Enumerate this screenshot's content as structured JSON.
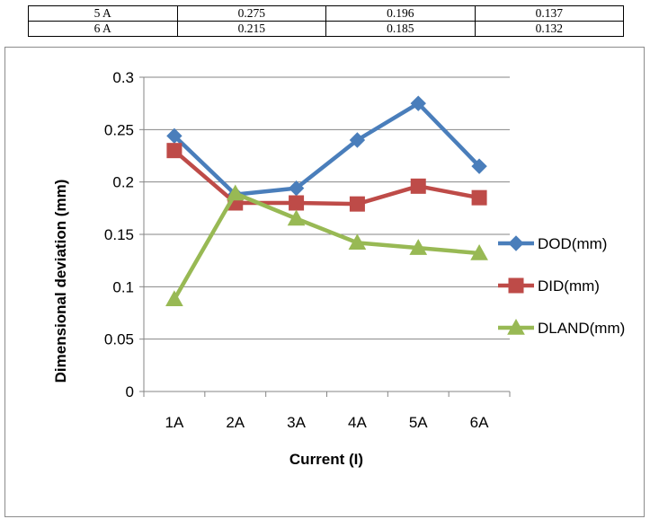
{
  "table": {
    "rows": [
      [
        "5 A",
        "0.275",
        "0.196",
        "0.137"
      ],
      [
        "6 A",
        "0.215",
        "0.185",
        "0.132"
      ]
    ]
  },
  "chart_data": {
    "type": "line",
    "categories": [
      "1A",
      "2A",
      "3A",
      "4A",
      "5A",
      "6A"
    ],
    "series": [
      {
        "name": "DOD(mm)",
        "values": [
          0.244,
          0.188,
          0.194,
          0.24,
          0.275,
          0.215
        ],
        "color": "#4a7ebb",
        "marker": "diamond"
      },
      {
        "name": "DID(mm)",
        "values": [
          0.23,
          0.18,
          0.18,
          0.179,
          0.196,
          0.185
        ],
        "color": "#be4b48",
        "marker": "square"
      },
      {
        "name": "DLAND(mm)",
        "values": [
          0.088,
          0.189,
          0.165,
          0.142,
          0.137,
          0.132
        ],
        "color": "#98b954",
        "marker": "triangle"
      }
    ],
    "title": "",
    "xlabel": "Current (I)",
    "ylabel": "Dimensional deviation (mm)",
    "ylim": [
      0,
      0.3
    ],
    "yticks": [
      "0",
      "0.05",
      "0.1",
      "0.15",
      "0.2",
      "0.25",
      "0.3"
    ],
    "grid": true,
    "legend": "right"
  }
}
